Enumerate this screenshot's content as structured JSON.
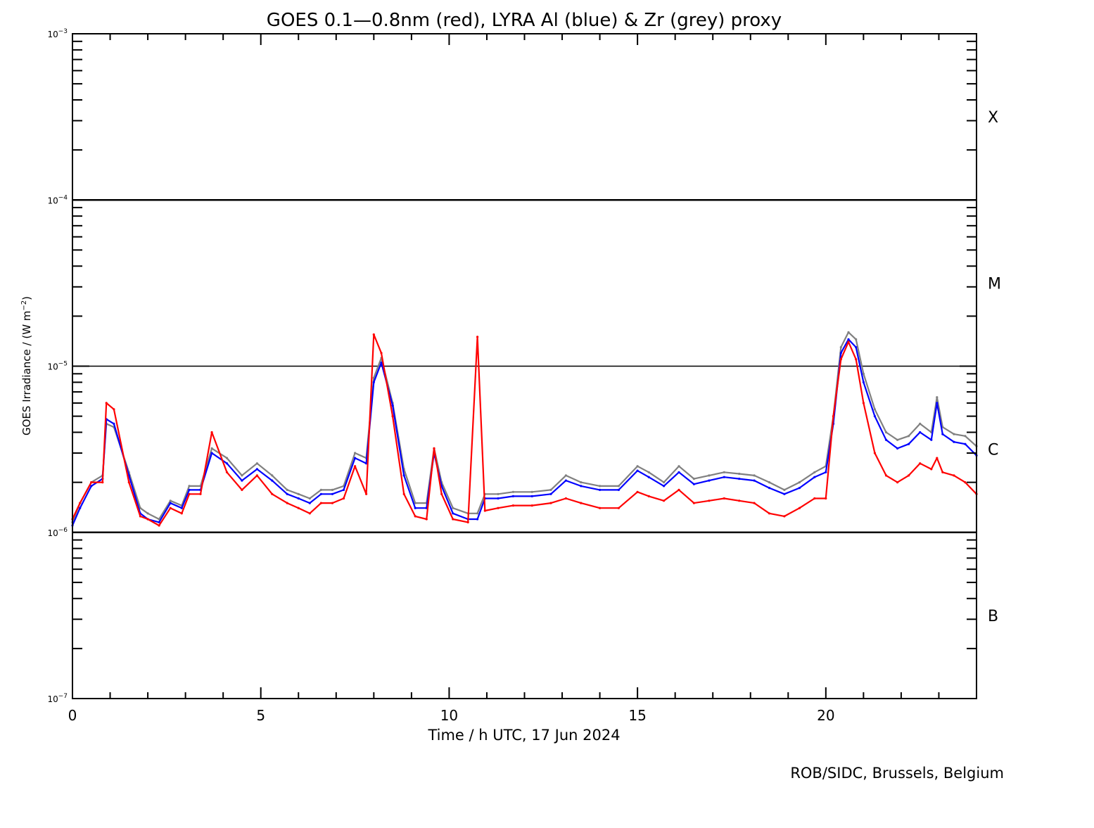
{
  "chart_data": {
    "type": "scatter",
    "title": "GOES 0.1—0.8nm (red), LYRA Al (blue) & Zr (grey) proxy",
    "xlabel": "Time / h UTC, 17 Jun 2024",
    "ylabel": "GOES Irradiance / (W m⁻²)",
    "xlim": [
      0,
      24
    ],
    "ylim": [
      1e-07,
      0.001
    ],
    "yscale": "log",
    "x_ticks": [
      0,
      5,
      10,
      15,
      20
    ],
    "x_tick_labels": [
      "0",
      "5",
      "10",
      "15",
      "20"
    ],
    "y_ticks": [
      1e-07,
      1e-06,
      1e-05,
      0.0001,
      0.001
    ],
    "y_tick_labels": [
      {
        "base": "10",
        "exp": "−7"
      },
      {
        "base": "10",
        "exp": "−6"
      },
      {
        "base": "10",
        "exp": "−5"
      },
      {
        "base": "10",
        "exp": "−4"
      },
      {
        "base": "10",
        "exp": "−3"
      }
    ],
    "ylabel_parts": {
      "pre": "GOES Irradiance / (W m",
      "sup": "−2",
      "post": ")"
    },
    "threshold_lines": [
      1e-06,
      1e-05,
      0.0001
    ],
    "flare_classes": [
      {
        "label": "X",
        "value": 0.000316
      },
      {
        "label": "M",
        "value": 3.16e-05
      },
      {
        "label": "C",
        "value": 3.16e-06
      },
      {
        "label": "B",
        "value": 3.16e-07
      }
    ],
    "colors": {
      "goes": "#ff0000",
      "lyra_al": "#0000ff",
      "lyra_zr": "#808080",
      "axis": "#000000"
    },
    "series": [
      {
        "color": "#808080",
        "x": [
          0.0,
          0.2,
          0.5,
          0.8,
          0.9,
          1.1,
          1.5,
          1.8,
          2.0,
          2.3,
          2.6,
          2.9,
          3.1,
          3.4,
          3.7,
          4.1,
          4.5,
          4.9,
          5.3,
          5.7,
          6.0,
          6.3,
          6.6,
          6.9,
          7.2,
          7.5,
          7.8,
          8.0,
          8.2,
          8.5,
          8.8,
          9.1,
          9.4,
          9.6,
          9.8,
          10.1,
          10.5,
          10.75,
          10.95,
          11.3,
          11.7,
          12.2,
          12.7,
          13.1,
          13.5,
          14.0,
          14.5,
          15.0,
          15.3,
          15.7,
          16.1,
          16.5,
          16.9,
          17.3,
          17.7,
          18.1,
          18.5,
          18.9,
          19.3,
          19.7,
          20.0,
          20.2,
          20.4,
          20.6,
          20.8,
          21.0,
          21.3,
          21.6,
          21.9,
          22.2,
          22.5,
          22.8,
          22.95,
          23.1,
          23.4,
          23.7,
          24.0
        ],
        "y": [
          1.15e-06,
          1.5e-06,
          2e-06,
          2.2e-06,
          4.5e-06,
          4.3e-06,
          2.3e-06,
          1.4e-06,
          1.3e-06,
          1.2e-06,
          1.55e-06,
          1.45e-06,
          1.9e-06,
          1.9e-06,
          3.2e-06,
          2.8e-06,
          2.2e-06,
          2.6e-06,
          2.2e-06,
          1.8e-06,
          1.7e-06,
          1.6e-06,
          1.8e-06,
          1.8e-06,
          1.9e-06,
          3e-06,
          2.8e-06,
          8.5e-06,
          1.12e-05,
          6e-06,
          2.4e-06,
          1.5e-06,
          1.5e-06,
          3.2e-06,
          2e-06,
          1.4e-06,
          1.3e-06,
          1.3e-06,
          1.7e-06,
          1.7e-06,
          1.75e-06,
          1.75e-06,
          1.8e-06,
          2.2e-06,
          2e-06,
          1.9e-06,
          1.9e-06,
          2.5e-06,
          2.3e-06,
          2e-06,
          2.5e-06,
          2.1e-06,
          2.2e-06,
          2.3e-06,
          2.25e-06,
          2.2e-06,
          2e-06,
          1.8e-06,
          2e-06,
          2.3e-06,
          2.5e-06,
          5e-06,
          1.3e-05,
          1.6e-05,
          1.45e-05,
          9e-06,
          5.5e-06,
          4e-06,
          3.6e-06,
          3.8e-06,
          4.5e-06,
          4e-06,
          6.5e-06,
          4.3e-06,
          3.9e-06,
          3.8e-06,
          3.3e-06
        ]
      },
      {
        "color": "#0000ff",
        "x": [
          0.0,
          0.2,
          0.5,
          0.8,
          0.9,
          1.1,
          1.5,
          1.8,
          2.0,
          2.3,
          2.6,
          2.9,
          3.1,
          3.4,
          3.7,
          4.1,
          4.5,
          4.9,
          5.3,
          5.7,
          6.0,
          6.3,
          6.6,
          6.9,
          7.2,
          7.5,
          7.8,
          8.0,
          8.2,
          8.5,
          8.8,
          9.1,
          9.4,
          9.6,
          9.8,
          10.1,
          10.5,
          10.75,
          10.95,
          11.3,
          11.7,
          12.2,
          12.7,
          13.1,
          13.5,
          14.0,
          14.5,
          15.0,
          15.3,
          15.7,
          16.1,
          16.5,
          16.9,
          17.3,
          17.7,
          18.1,
          18.5,
          18.9,
          19.3,
          19.7,
          20.0,
          20.2,
          20.4,
          20.6,
          20.8,
          21.0,
          21.3,
          21.6,
          21.9,
          22.2,
          22.5,
          22.8,
          22.95,
          23.1,
          23.4,
          23.7,
          24.0
        ],
        "y": [
          1.1e-06,
          1.4e-06,
          1.9e-06,
          2.1e-06,
          4.8e-06,
          4.5e-06,
          2.2e-06,
          1.3e-06,
          1.2e-06,
          1.15e-06,
          1.5e-06,
          1.4e-06,
          1.8e-06,
          1.8e-06,
          3e-06,
          2.6e-06,
          2.05e-06,
          2.4e-06,
          2.05e-06,
          1.7e-06,
          1.6e-06,
          1.5e-06,
          1.7e-06,
          1.7e-06,
          1.8e-06,
          2.8e-06,
          2.6e-06,
          8e-06,
          1.05e-05,
          5.8e-06,
          2.2e-06,
          1.4e-06,
          1.4e-06,
          3e-06,
          1.9e-06,
          1.3e-06,
          1.2e-06,
          1.2e-06,
          1.6e-06,
          1.6e-06,
          1.65e-06,
          1.65e-06,
          1.7e-06,
          2.05e-06,
          1.9e-06,
          1.8e-06,
          1.8e-06,
          2.35e-06,
          2.15e-06,
          1.9e-06,
          2.3e-06,
          1.95e-06,
          2.05e-06,
          2.15e-06,
          2.1e-06,
          2.05e-06,
          1.85e-06,
          1.7e-06,
          1.85e-06,
          2.15e-06,
          2.3e-06,
          4.5e-06,
          1.2e-05,
          1.45e-05,
          1.3e-05,
          8e-06,
          5e-06,
          3.6e-06,
          3.2e-06,
          3.4e-06,
          4e-06,
          3.6e-06,
          6e-06,
          3.9e-06,
          3.5e-06,
          3.4e-06,
          2.9e-06
        ]
      },
      {
        "color": "#ff0000",
        "x": [
          0.0,
          0.2,
          0.5,
          0.8,
          0.9,
          1.1,
          1.5,
          1.8,
          2.0,
          2.3,
          2.6,
          2.9,
          3.1,
          3.4,
          3.7,
          4.1,
          4.5,
          4.9,
          5.3,
          5.7,
          6.0,
          6.3,
          6.6,
          6.9,
          7.2,
          7.5,
          7.8,
          8.0,
          8.2,
          8.5,
          8.8,
          9.1,
          9.4,
          9.6,
          9.8,
          10.1,
          10.5,
          10.75,
          10.95,
          11.3,
          11.7,
          12.2,
          12.7,
          13.1,
          13.5,
          14.0,
          14.5,
          15.0,
          15.3,
          15.7,
          16.1,
          16.5,
          16.9,
          17.3,
          17.7,
          18.1,
          18.5,
          18.9,
          19.3,
          19.7,
          20.0,
          20.2,
          20.4,
          20.6,
          20.8,
          21.0,
          21.3,
          21.6,
          21.9,
          22.2,
          22.5,
          22.8,
          22.95,
          23.1,
          23.4,
          23.7,
          24.0
        ],
        "y": [
          1.2e-06,
          1.5e-06,
          2e-06,
          2e-06,
          6e-06,
          5.5e-06,
          2e-06,
          1.25e-06,
          1.2e-06,
          1.1e-06,
          1.4e-06,
          1.3e-06,
          1.7e-06,
          1.7e-06,
          4e-06,
          2.3e-06,
          1.8e-06,
          2.2e-06,
          1.7e-06,
          1.5e-06,
          1.4e-06,
          1.3e-06,
          1.5e-06,
          1.5e-06,
          1.6e-06,
          2.5e-06,
          1.7e-06,
          1.55e-05,
          1.2e-05,
          5e-06,
          1.7e-06,
          1.25e-06,
          1.2e-06,
          3.2e-06,
          1.7e-06,
          1.2e-06,
          1.15e-06,
          1.5e-05,
          1.35e-06,
          1.4e-06,
          1.45e-06,
          1.45e-06,
          1.5e-06,
          1.6e-06,
          1.5e-06,
          1.4e-06,
          1.4e-06,
          1.75e-06,
          1.65e-06,
          1.55e-06,
          1.8e-06,
          1.5e-06,
          1.55e-06,
          1.6e-06,
          1.55e-06,
          1.5e-06,
          1.3e-06,
          1.25e-06,
          1.4e-06,
          1.6e-06,
          1.6e-06,
          5e-06,
          1.1e-05,
          1.4e-05,
          1.1e-05,
          6e-06,
          3e-06,
          2.2e-06,
          2e-06,
          2.2e-06,
          2.6e-06,
          2.4e-06,
          2.8e-06,
          2.3e-06,
          2.2e-06,
          2e-06,
          1.7e-06
        ]
      }
    ],
    "credit": "ROB/SIDC, Brussels, Belgium",
    "grid": false
  }
}
